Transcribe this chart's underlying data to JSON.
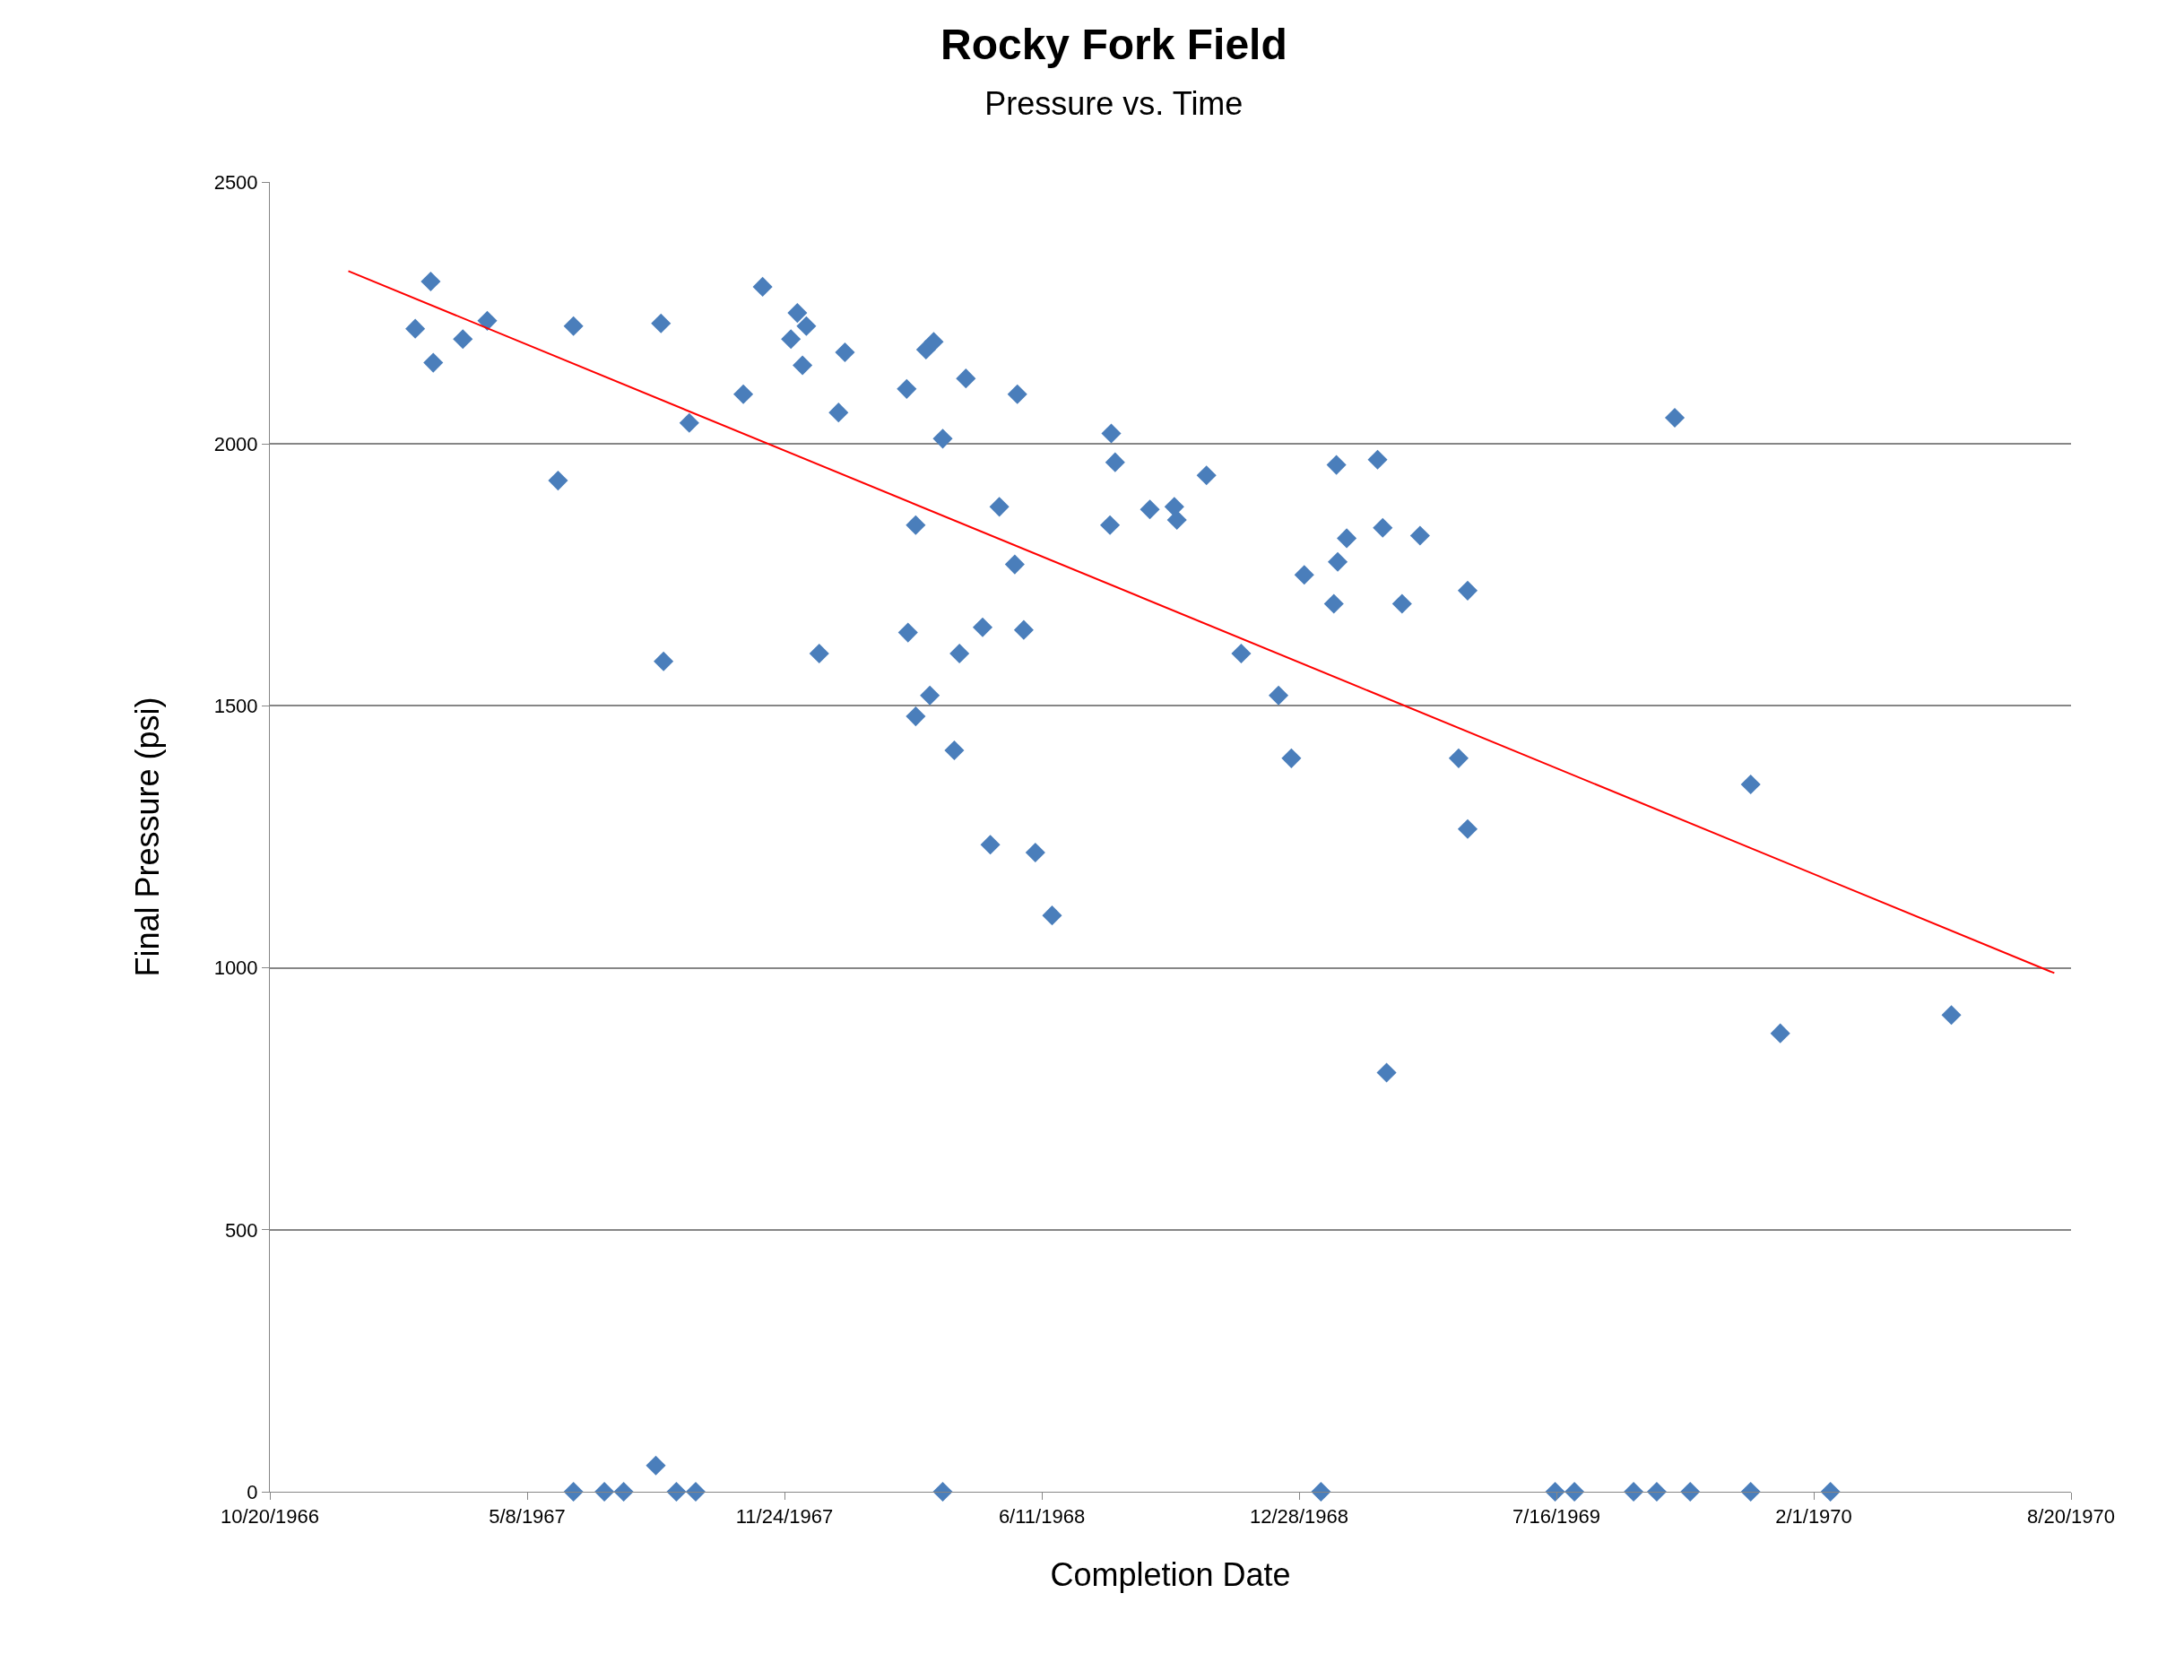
{
  "chart_data": {
    "type": "scatter",
    "title": "Rocky Fork Field",
    "subtitle": "Pressure vs. Time",
    "xlabel": "Completion Date",
    "ylabel": "Final Pressure (psi)",
    "series": [
      {
        "color": "#4a7ebb",
        "marker": "diamond",
        "x": [
          "1967-02-10",
          "1967-02-22",
          "1967-02-24",
          "1967-03-19",
          "1967-04-07",
          "1967-06-01",
          "1967-06-13",
          "1967-06-13",
          "1967-07-07",
          "1967-07-22",
          "1967-08-16",
          "1967-08-20",
          "1967-08-22",
          "1967-09-01",
          "1967-09-11",
          "1967-09-16",
          "1967-10-23",
          "1967-11-07",
          "1967-11-29",
          "1967-12-04",
          "1967-12-08",
          "1967-12-11",
          "1967-12-21",
          "1968-01-05",
          "1968-01-10",
          "1968-02-27",
          "1968-02-28",
          "1968-03-05",
          "1968-03-05",
          "1968-03-13",
          "1968-03-16",
          "1968-03-19",
          "1968-03-26",
          "1968-03-26",
          "1968-04-04",
          "1968-04-08",
          "1968-04-13",
          "1968-04-26",
          "1968-05-02",
          "1968-05-09",
          "1968-05-21",
          "1968-05-23",
          "1968-05-28",
          "1968-06-06",
          "1968-06-19",
          "1968-08-03",
          "1968-08-04",
          "1968-08-07",
          "1968-09-03",
          "1968-09-22",
          "1968-09-24",
          "1968-10-17",
          "1968-11-13",
          "1968-12-12",
          "1968-12-22",
          "1969-01-01",
          "1969-01-14",
          "1969-01-24",
          "1969-01-26",
          "1969-01-27",
          "1969-02-03",
          "1969-02-27",
          "1969-03-03",
          "1969-03-06",
          "1969-03-18",
          "1969-04-01",
          "1969-05-01",
          "1969-05-08",
          "1969-05-08",
          "1969-07-15",
          "1969-07-30",
          "1969-09-14",
          "1969-10-02",
          "1969-10-16",
          "1969-10-28",
          "1969-12-14",
          "1969-12-14",
          "1970-01-06",
          "1970-02-14",
          "1970-05-19"
        ],
        "values": [
          2220,
          2310,
          2155,
          2200,
          2235,
          1930,
          2225,
          0,
          0,
          0,
          50,
          2230,
          1585,
          0,
          2040,
          0,
          2095,
          2300,
          2200,
          2250,
          2150,
          2225,
          1600,
          2060,
          2175,
          2105,
          1640,
          1845,
          1480,
          2180,
          1520,
          2195,
          2010,
          0,
          1415,
          1600,
          2125,
          1650,
          1235,
          1880,
          1770,
          2095,
          1645,
          1220,
          1100,
          1845,
          2020,
          1965,
          1875,
          1880,
          1855,
          1940,
          1600,
          1520,
          1400,
          1750,
          0,
          1695,
          1960,
          1775,
          1820,
          1970,
          1840,
          800,
          1695,
          1825,
          1400,
          1720,
          1265,
          0,
          0,
          0,
          0,
          2050,
          0,
          1350,
          0,
          875,
          0,
          910
        ]
      },
      {
        "type": "line",
        "color": "#ff0000",
        "marker": "none",
        "x": [
          "1966-12-20",
          "1970-08-07"
        ],
        "values": [
          2330,
          990
        ]
      }
    ],
    "xlim": [
      "1966-10-20",
      "1970-08-20"
    ],
    "xticks": [
      {
        "value": "1966-10-20",
        "label": "10/20/1966"
      },
      {
        "value": "1967-05-08",
        "label": "5/8/1967"
      },
      {
        "value": "1967-11-24",
        "label": "11/24/1967"
      },
      {
        "value": "1968-06-11",
        "label": "6/11/1968"
      },
      {
        "value": "1968-12-28",
        "label": "12/28/1968"
      },
      {
        "value": "1969-07-16",
        "label": "7/16/1969"
      },
      {
        "value": "1970-02-01",
        "label": "2/1/1970"
      },
      {
        "value": "1970-08-20",
        "label": "8/20/1970"
      }
    ],
    "ylim": [
      0,
      2500
    ],
    "yticks": [
      0,
      500,
      1000,
      1500,
      2000,
      2500
    ],
    "grid": "y"
  }
}
